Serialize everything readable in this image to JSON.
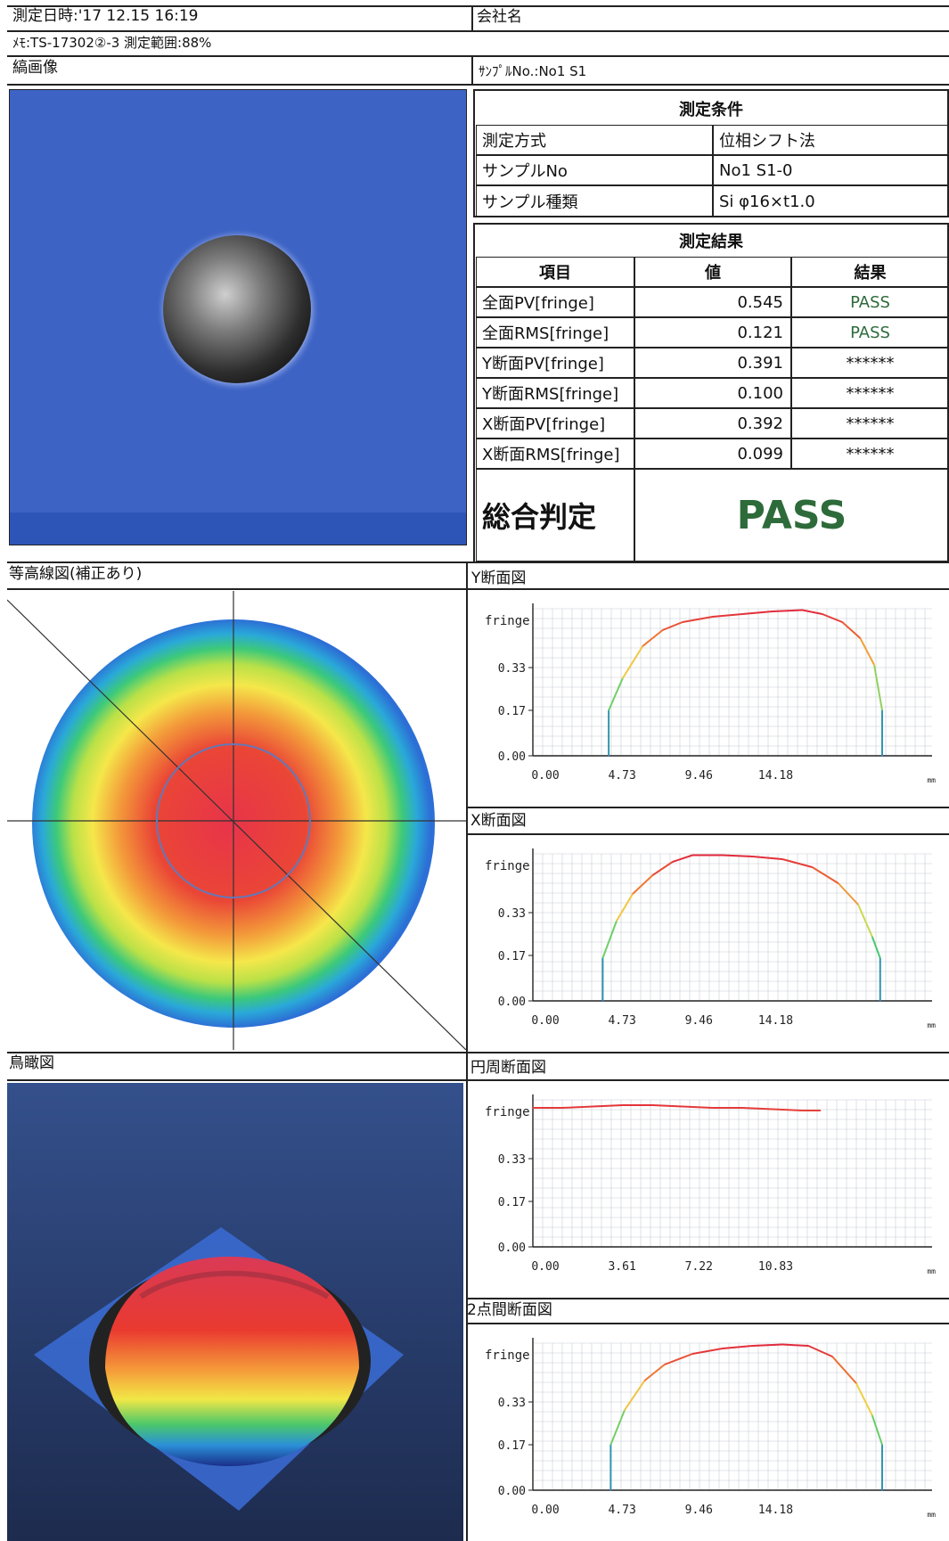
{
  "header": {
    "measure_datetime": "測定日時:'17 12.15 16:19",
    "company_label": "会社名",
    "memo": "ﾒﾓ:TS-17302②-3 測定範囲:88%",
    "fringe_image_label": "縞画像",
    "sample_no_label": "ｻﾝﾌﾟﾙNo.:No1 S1"
  },
  "conditions": {
    "title": "測定条件",
    "rows": [
      {
        "label": "測定方式",
        "value": "位相シフト法"
      },
      {
        "label": "サンプルNo",
        "value": "No1 S1-0"
      },
      {
        "label": "サンプル種類",
        "value": "Si  φ16×t1.0"
      }
    ]
  },
  "results": {
    "title": "測定結果",
    "headers": [
      "項目",
      "値",
      "結果"
    ],
    "rows": [
      {
        "item": "全面PV[fringe]",
        "value": "0.545",
        "result": "PASS"
      },
      {
        "item": "全面RMS[fringe]",
        "value": "0.121",
        "result": "PASS"
      },
      {
        "item": "Y断面PV[fringe]",
        "value": "0.391",
        "result": "******"
      },
      {
        "item": "Y断面RMS[fringe]",
        "value": "0.100",
        "result": "******"
      },
      {
        "item": "X断面PV[fringe]",
        "value": "0.392",
        "result": "******"
      },
      {
        "item": "X断面RMS[fringe]",
        "value": "0.099",
        "result": "******"
      }
    ],
    "overall_label": "総合判定",
    "overall_value": "PASS"
  },
  "sections": {
    "contour": "等高線図(補正あり)",
    "y_section": "Y断面図",
    "x_section": "X断面図",
    "birdseye": "鳥瞰図",
    "circumference": "円周断面図",
    "two_point": "2点間断面図"
  },
  "colors": {
    "fringe_bg": "#3d63c4",
    "pass_green": "#2e6b3a",
    "profile_red": "#e0303c"
  },
  "chart_data": [
    {
      "type": "line",
      "name": "Y断面図",
      "ylabel": "fringe",
      "xlabel": "mm",
      "xticks": [
        "0.00",
        "4.73",
        "9.46",
        "14.18"
      ],
      "yticks": [
        "0.00",
        "0.17",
        "0.33"
      ],
      "ylim": [
        0,
        0.55
      ],
      "x": [
        3.8,
        3.8,
        4.5,
        5.5,
        6.5,
        7.5,
        9.0,
        10.5,
        12.0,
        13.5,
        14.5,
        15.5,
        16.4,
        17.1,
        17.5,
        17.5
      ],
      "y": [
        0.0,
        0.17,
        0.29,
        0.41,
        0.47,
        0.5,
        0.52,
        0.53,
        0.54,
        0.545,
        0.53,
        0.5,
        0.44,
        0.34,
        0.17,
        0.0
      ]
    },
    {
      "type": "line",
      "name": "X断面図",
      "ylabel": "fringe",
      "xlabel": "mm",
      "xticks": [
        "0.00",
        "4.73",
        "9.46",
        "14.18"
      ],
      "yticks": [
        "0.00",
        "0.17",
        "0.33"
      ],
      "ylim": [
        0,
        0.55
      ],
      "x": [
        3.5,
        3.5,
        4.2,
        5.0,
        6.0,
        7.0,
        8.0,
        9.5,
        11.0,
        12.5,
        14.0,
        15.3,
        16.3,
        17.0,
        17.4,
        17.4
      ],
      "y": [
        0.0,
        0.16,
        0.3,
        0.4,
        0.47,
        0.52,
        0.545,
        0.545,
        0.54,
        0.53,
        0.5,
        0.44,
        0.36,
        0.24,
        0.16,
        0.0
      ]
    },
    {
      "type": "line",
      "name": "円周断面図",
      "ylabel": "fringe",
      "xlabel": "mm",
      "xticks": [
        "0.00",
        "3.61",
        "7.22",
        "10.83"
      ],
      "yticks": [
        "0.00",
        "0.17",
        "0.33"
      ],
      "ylim": [
        0,
        0.55
      ],
      "x": [
        0.0,
        1.5,
        3.0,
        4.5,
        6.0,
        7.5,
        9.0,
        10.5,
        12.0,
        13.5,
        14.4
      ],
      "y": [
        0.52,
        0.52,
        0.525,
        0.53,
        0.53,
        0.525,
        0.52,
        0.52,
        0.515,
        0.51,
        0.51
      ]
    },
    {
      "type": "line",
      "name": "2点間断面図",
      "ylabel": "fringe",
      "xlabel": "mm",
      "xticks": [
        "0.00",
        "4.73",
        "9.46",
        "14.18"
      ],
      "yticks": [
        "0.00",
        "0.17",
        "0.33"
      ],
      "ylim": [
        0,
        0.55
      ],
      "x": [
        3.9,
        3.9,
        4.6,
        5.6,
        6.6,
        8.0,
        9.5,
        11.0,
        12.5,
        13.8,
        15.0,
        16.2,
        17.0,
        17.5,
        17.5
      ],
      "y": [
        0.0,
        0.17,
        0.3,
        0.41,
        0.47,
        0.51,
        0.53,
        0.54,
        0.545,
        0.54,
        0.5,
        0.4,
        0.28,
        0.17,
        0.0
      ]
    }
  ]
}
